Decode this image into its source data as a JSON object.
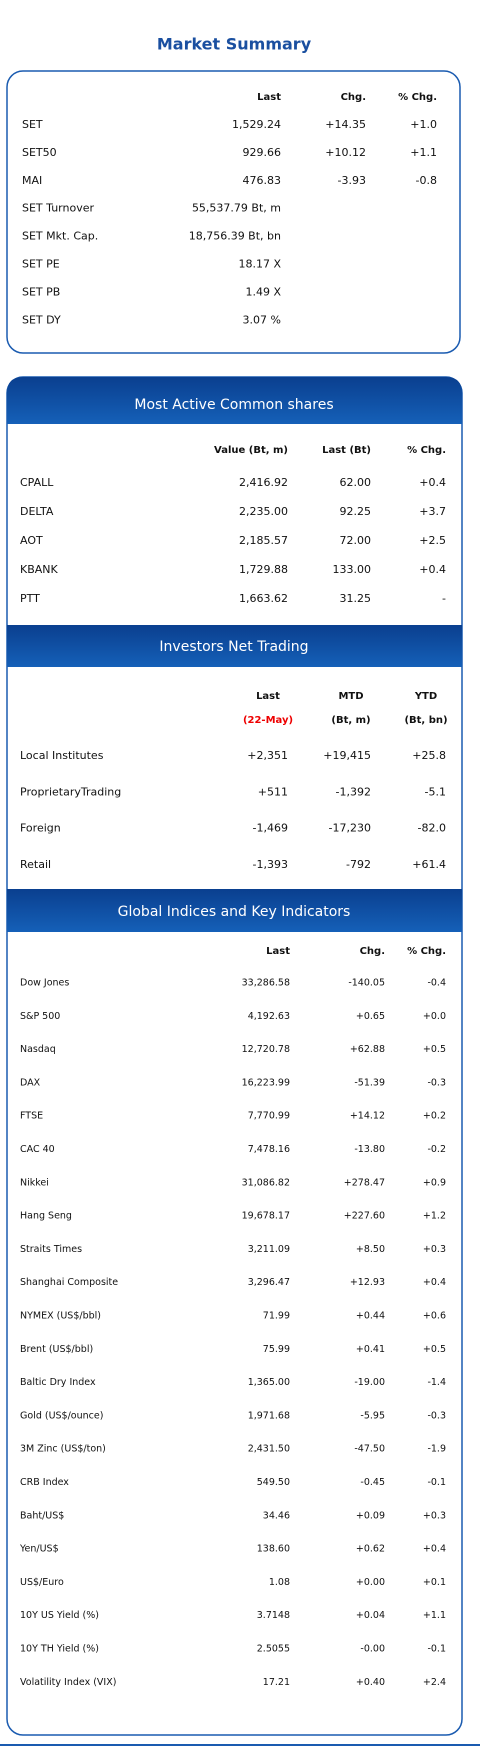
{
  "title": "Market Summary",
  "market_summary": {
    "columns": [
      "Last",
      "Chg.",
      "% Chg."
    ],
    "rows": [
      [
        "SET",
        "1,529.24",
        "+14.35",
        "+1.0"
      ],
      [
        "SET50",
        "929.66",
        "+10.12",
        "+1.1"
      ],
      [
        "MAI",
        "476.83",
        "-3.93",
        "-0.8"
      ],
      [
        "SET Turnover",
        "55,537.79 Bt, m"
      ],
      [
        "SET Mkt. Cap.",
        "18,756.39 Bt, bn"
      ],
      [
        "SET PE",
        "18.17 X"
      ],
      [
        "SET PB",
        "1.49 X"
      ],
      [
        "SET DY",
        "3.07 %"
      ]
    ]
  },
  "most_active": {
    "title": "Most Active Common shares",
    "columns": [
      "Value (Bt, m)",
      "Last (Bt)",
      "% Chg."
    ],
    "rows": [
      [
        "CPALL",
        "2,416.92",
        "62.00",
        "+0.4"
      ],
      [
        "DELTA",
        "2,235.00",
        "92.25",
        "+3.7"
      ],
      [
        "AOT",
        "2,185.57",
        "72.00",
        "+2.5"
      ],
      [
        "KBANK",
        "1,729.88",
        "133.00",
        "+0.4"
      ],
      [
        "PTT",
        "1,663.62",
        "31.25",
        "-"
      ]
    ]
  },
  "investors": {
    "title": "Investors Net Trading",
    "columns": [
      [
        "Last",
        "(22-May)"
      ],
      [
        "MTD",
        "(Bt, m)"
      ],
      [
        "YTD",
        "(Bt, bn)"
      ]
    ],
    "rows": [
      [
        "Local Institutes",
        "+2,351",
        "+19,415",
        "+25.8"
      ],
      [
        "ProprietaryTrading",
        "+511",
        "-1,392",
        "-5.1"
      ],
      [
        "Foreign",
        "-1,469",
        "-17,230",
        "-82.0"
      ],
      [
        "Retail",
        "-1,393",
        "-792",
        "+61.4"
      ]
    ]
  },
  "global": {
    "title": "Global Indices and Key Indicators",
    "columns": [
      "Last",
      "Chg.",
      "% Chg."
    ],
    "rows": [
      [
        "Dow Jones",
        "33,286.58",
        "-140.05",
        "-0.4"
      ],
      [
        "S&P 500",
        "4,192.63",
        "+0.65",
        "+0.0"
      ],
      [
        "Nasdaq",
        "12,720.78",
        "+62.88",
        "+0.5"
      ],
      [
        "DAX",
        "16,223.99",
        "-51.39",
        "-0.3"
      ],
      [
        "FTSE",
        "7,770.99",
        "+14.12",
        "+0.2"
      ],
      [
        "CAC 40",
        "7,478.16",
        "-13.80",
        "-0.2"
      ],
      [
        "Nikkei",
        "31,086.82",
        "+278.47",
        "+0.9"
      ],
      [
        "Hang Seng",
        "19,678.17",
        "+227.60",
        "+1.2"
      ],
      [
        "Straits Times",
        "3,211.09",
        "+8.50",
        "+0.3"
      ],
      [
        "Shanghai Composite",
        "3,296.47",
        "+12.93",
        "+0.4"
      ],
      [
        "NYMEX (US$/bbl)",
        "71.99",
        "+0.44",
        "+0.6"
      ],
      [
        "Brent (US$/bbl)",
        "75.99",
        "+0.41",
        "+0.5"
      ],
      [
        "Baltic Dry Index",
        "1,365.00",
        "-19.00",
        "-1.4"
      ],
      [
        "Gold (US$/ounce)",
        "1,971.68",
        "-5.95",
        "-0.3"
      ],
      [
        "3M Zinc (US$/ton)",
        "2,431.50",
        "-47.50",
        "-1.9"
      ],
      [
        "CRB Index",
        "549.50",
        "-0.45",
        "-0.1"
      ],
      [
        "Baht/US$",
        "34.46",
        "+0.09",
        "+0.3"
      ],
      [
        "Yen/US$",
        "138.60",
        "+0.62",
        "+0.4"
      ],
      [
        "US$/Euro",
        "1.08",
        "+0.00",
        "+0.1"
      ],
      [
        "10Y US Yield (%)",
        "3.7148",
        "+0.04",
        "+1.1"
      ],
      [
        "10Y TH Yield (%)",
        "2.5055",
        "-0.00",
        "-0.1"
      ],
      [
        "Volatility Index (VIX)",
        "17.21",
        "+0.40",
        "+2.4"
      ]
    ]
  }
}
